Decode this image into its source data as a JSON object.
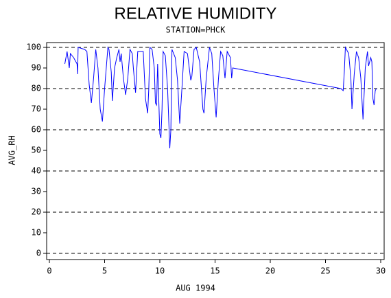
{
  "chart_data": {
    "type": "line",
    "title": "RELATIVE HUMIDITY",
    "subtitle": "STATION=PHCK",
    "x_label": "AUG 1994",
    "y_label": "AVG_RH",
    "color": "#0000ff",
    "xlim": [
      0,
      30
    ],
    "xticks": [
      0,
      5,
      10,
      15,
      20,
      25,
      30
    ],
    "ylim": [
      0,
      100
    ],
    "yticks": [
      0,
      10,
      20,
      30,
      40,
      50,
      60,
      70,
      80,
      90,
      100
    ],
    "ygrid": [
      0,
      20,
      40,
      60,
      80,
      100
    ],
    "x": [
      1.4,
      1.6,
      1.8,
      1.9,
      2.2,
      2.5,
      2.55,
      2.6,
      3.2,
      3.4,
      3.6,
      3.8,
      4.0,
      4.2,
      4.4,
      4.6,
      4.8,
      5.0,
      5.3,
      5.4,
      5.6,
      5.7,
      5.9,
      6.1,
      6.3,
      6.4,
      6.5,
      6.7,
      6.9,
      7.1,
      7.3,
      7.5,
      7.6,
      7.8,
      8.0,
      8.5,
      8.7,
      8.9,
      9.0,
      9.1,
      9.3,
      9.5,
      9.6,
      9.7,
      9.8,
      10.0,
      10.1,
      10.2,
      10.3,
      10.5,
      10.7,
      10.9,
      11.0,
      11.1,
      11.4,
      11.6,
      11.8,
      12.0,
      12.2,
      12.5,
      12.8,
      12.9,
      13.1,
      13.3,
      13.6,
      13.9,
      14.0,
      14.2,
      14.5,
      14.7,
      14.9,
      15.1,
      15.3,
      15.5,
      15.7,
      15.9,
      16.1,
      16.4,
      16.5,
      16.6,
      26.4,
      26.6,
      26.7,
      26.8,
      27.1,
      27.3,
      27.4,
      27.6,
      27.8,
      28.0,
      28.2,
      28.4,
      28.6,
      28.8,
      28.9,
      29.1,
      29.2,
      29.3,
      29.4,
      29.5,
      29.6
    ],
    "values": [
      92,
      98,
      90,
      97,
      95,
      92,
      87,
      100,
      99,
      98,
      82,
      73,
      85,
      99,
      90,
      70,
      64,
      80,
      100,
      99,
      88,
      74,
      90,
      95,
      99,
      93,
      97,
      85,
      77,
      85,
      99,
      97,
      90,
      78,
      98,
      98,
      75,
      68,
      80,
      100,
      99,
      90,
      73,
      72,
      92,
      58,
      56,
      70,
      98,
      96,
      80,
      51,
      60,
      99,
      95,
      84,
      63,
      80,
      98,
      97,
      84,
      86,
      99,
      100,
      93,
      70,
      68,
      85,
      100,
      97,
      80,
      66,
      84,
      98,
      96,
      85,
      98,
      95,
      85,
      90,
      80,
      79,
      88,
      100,
      97,
      85,
      70,
      87,
      98,
      95,
      85,
      65,
      90,
      98,
      91,
      95,
      93,
      75,
      72,
      79,
      80
    ]
  }
}
